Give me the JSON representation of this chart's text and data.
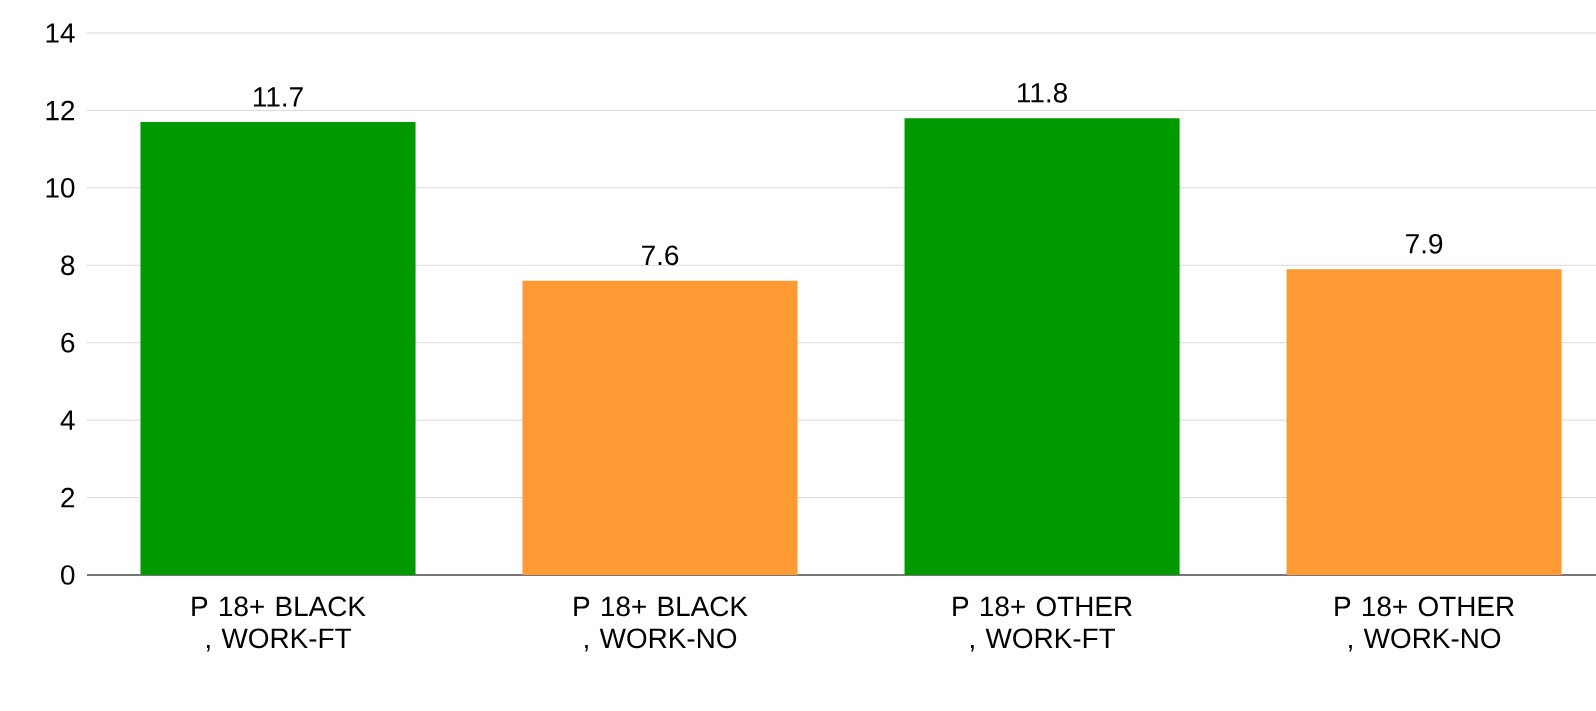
{
  "chart_data": {
    "type": "bar",
    "categories": [
      "P 18+ BLACK , WORK-FT",
      "P 18+ BLACK , WORK-NO",
      "P 18+ OTHER , WORK-FT",
      "P 18+ OTHER , WORK-NO"
    ],
    "values": [
      11.7,
      7.6,
      11.8,
      7.9
    ],
    "colors": [
      "#009900",
      "#ff9933",
      "#009900",
      "#ff9933"
    ],
    "ylim": [
      0,
      14
    ],
    "yticks": [
      0,
      2,
      4,
      6,
      8,
      10,
      12,
      14
    ],
    "grid": "y",
    "data_labels": true
  }
}
